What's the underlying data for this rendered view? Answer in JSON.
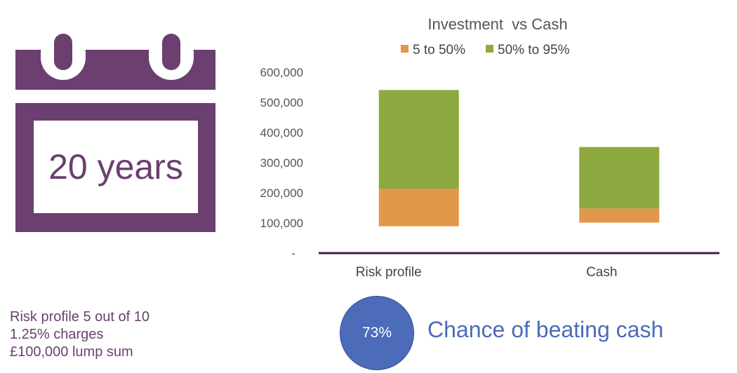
{
  "calendar": {
    "label": "20 years",
    "icon": "calendar-icon",
    "color": "#6b3f70"
  },
  "chart_data": {
    "type": "bar",
    "stacked": true,
    "title": "Investment  vs Cash",
    "categories": [
      "Risk profile",
      "Cash"
    ],
    "series": [
      {
        "name": "5 to 50%",
        "color": "#e0984b",
        "bottoms": [
          89000,
          101000
        ],
        "tops": [
          213000,
          148000
        ]
      },
      {
        "name": "50% to 95%",
        "color": "#8ea93f",
        "bottoms": [
          213000,
          148000
        ],
        "tops": [
          541000,
          352000
        ]
      }
    ],
    "yticks": [
      {
        "value": 0,
        "label": "-"
      },
      {
        "value": 100000,
        "label": "100,000"
      },
      {
        "value": 200000,
        "label": "200,000"
      },
      {
        "value": 300000,
        "label": "300,000"
      },
      {
        "value": 400000,
        "label": "400,000"
      },
      {
        "value": 500000,
        "label": "500,000"
      },
      {
        "value": 600000,
        "label": "600,000"
      }
    ],
    "ylim": [
      0,
      600000
    ],
    "legend_position": "top",
    "grid": false,
    "axis_color": "#3d2140"
  },
  "summary": {
    "lines": [
      "Risk profile 5 out of 10",
      "1.25% charges",
      "£100,000 lump sum"
    ]
  },
  "chance": {
    "value": "73%",
    "label": "Chance of beating cash",
    "color": "#4c6bb8"
  }
}
